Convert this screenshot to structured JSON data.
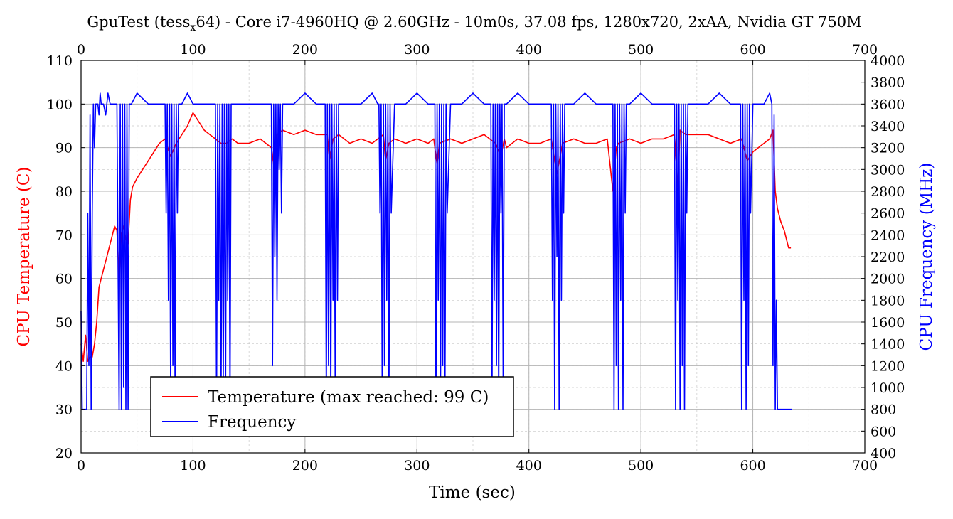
{
  "chart_data": {
    "type": "line",
    "title": "GpuTest (tess",
    "title_sub": "x",
    "title_rest": "64) - Core i7-4960HQ @ 2.60GHz - 10m0s, 37.08 fps, 1280x720, 2xAA, Nvidia GT 750M",
    "xlabel": "Time (sec)",
    "ylabel_left": "CPU Temperature (C)",
    "ylabel_right": "CPU Frequency (MHz)",
    "xlim": [
      0,
      700
    ],
    "ylim_left": [
      20,
      110
    ],
    "ylim_right": [
      400,
      4000
    ],
    "x_ticks": [
      "0",
      "100",
      "200",
      "300",
      "400",
      "500",
      "600",
      "700"
    ],
    "y_left_ticks": [
      "20",
      "30",
      "40",
      "50",
      "60",
      "70",
      "80",
      "90",
      "100",
      "110"
    ],
    "y_right_ticks": [
      "400",
      "600",
      "800",
      "1000",
      "1200",
      "1400",
      "1600",
      "1800",
      "2000",
      "2200",
      "2400",
      "2600",
      "2800",
      "3000",
      "3200",
      "3400",
      "3600",
      "3800",
      "4000"
    ],
    "grid": true,
    "legend_placement": "bottom-left",
    "series": [
      {
        "name": "Temperature (max reached: 99 C)",
        "axis": "left",
        "color": "#ff0000",
        "x": [
          0,
          2,
          4,
          6,
          8,
          10,
          12,
          14,
          16,
          18,
          20,
          24,
          28,
          30,
          32,
          34,
          36,
          38,
          40,
          42,
          44,
          46,
          50,
          55,
          60,
          65,
          70,
          75,
          80,
          85,
          90,
          95,
          100,
          105,
          110,
          115,
          120,
          125,
          130,
          135,
          140,
          150,
          160,
          170,
          172,
          175,
          180,
          190,
          200,
          210,
          220,
          222,
          225,
          230,
          240,
          250,
          260,
          270,
          272,
          275,
          280,
          290,
          300,
          310,
          315,
          318,
          320,
          330,
          340,
          350,
          360,
          370,
          375,
          378,
          380,
          390,
          400,
          410,
          420,
          425,
          430,
          440,
          450,
          460,
          470,
          475,
          478,
          480,
          490,
          500,
          510,
          520,
          530,
          533,
          535,
          540,
          550,
          560,
          570,
          580,
          590,
          595,
          600,
          610,
          615,
          618,
          620,
          622,
          625,
          628,
          630,
          632,
          634
        ],
        "values": [
          45,
          41,
          47,
          41,
          42,
          42,
          45,
          50,
          58,
          60,
          62,
          66,
          70,
          72,
          71,
          60,
          70,
          72,
          69,
          68,
          78,
          81,
          83,
          85,
          87,
          89,
          91,
          92,
          88,
          91,
          93,
          95,
          98,
          96,
          94,
          93,
          92,
          91,
          91,
          92,
          91,
          91,
          92,
          90,
          86,
          93,
          94,
          93,
          94,
          93,
          93,
          87,
          92,
          93,
          91,
          92,
          91,
          93,
          87,
          91,
          92,
          91,
          92,
          91,
          92,
          86,
          91,
          92,
          91,
          92,
          93,
          91,
          88,
          92,
          90,
          92,
          91,
          91,
          92,
          84,
          91,
          92,
          91,
          91,
          92,
          80,
          90,
          91,
          92,
          91,
          92,
          92,
          93,
          81,
          94,
          93,
          93,
          93,
          92,
          91,
          92,
          87,
          89,
          91,
          92,
          94,
          80,
          76,
          73,
          71,
          69,
          67,
          67
        ]
      },
      {
        "name": "Frequency",
        "axis": "right",
        "color": "#0000ff",
        "x": [
          0,
          1,
          2,
          3,
          4,
          5,
          6,
          7,
          8,
          9,
          10,
          11,
          12,
          13,
          14,
          15,
          16,
          17,
          18,
          19,
          20,
          22,
          24,
          26,
          28,
          30,
          32,
          34,
          35,
          36,
          37,
          38,
          39,
          40,
          41,
          42,
          43,
          44,
          45,
          50,
          60,
          70,
          75,
          76,
          77,
          78,
          79,
          80,
          81,
          82,
          83,
          84,
          85,
          86,
          87,
          88,
          89,
          90,
          95,
          100,
          110,
          120,
          121,
          122,
          123,
          124,
          125,
          126,
          127,
          128,
          129,
          130,
          131,
          132,
          133,
          134,
          135,
          140,
          150,
          160,
          170,
          171,
          172,
          173,
          174,
          175,
          176,
          177,
          178,
          179,
          180,
          190,
          200,
          210,
          218,
          219,
          220,
          221,
          222,
          223,
          224,
          225,
          226,
          227,
          228,
          229,
          230,
          240,
          250,
          260,
          265,
          266,
          267,
          268,
          269,
          270,
          271,
          272,
          273,
          274,
          275,
          276,
          277,
          280,
          290,
          300,
          310,
          315,
          316,
          317,
          318,
          319,
          320,
          321,
          322,
          323,
          324,
          325,
          326,
          327,
          330,
          340,
          350,
          360,
          365,
          366,
          367,
          368,
          369,
          370,
          371,
          372,
          373,
          374,
          375,
          376,
          377,
          378,
          380,
          390,
          400,
          410,
          420,
          421,
          422,
          423,
          424,
          425,
          426,
          427,
          428,
          429,
          430,
          431,
          432,
          440,
          450,
          460,
          470,
          475,
          476,
          477,
          478,
          479,
          480,
          481,
          482,
          483,
          484,
          485,
          486,
          487,
          488,
          490,
          500,
          510,
          520,
          530,
          531,
          532,
          533,
          534,
          535,
          536,
          537,
          538,
          539,
          540,
          541,
          542,
          543,
          550,
          560,
          570,
          580,
          588,
          589,
          590,
          591,
          592,
          593,
          594,
          595,
          596,
          597,
          598,
          600,
          610,
          615,
          617,
          618,
          619,
          620,
          621,
          622,
          625,
          630,
          635
        ],
        "values": [
          1700,
          800,
          800,
          800,
          800,
          800,
          2600,
          1200,
          3500,
          800,
          2600,
          3600,
          3200,
          3600,
          3600,
          3600,
          3500,
          3700,
          3600,
          3600,
          3600,
          3500,
          3700,
          3600,
          3600,
          3600,
          3600,
          800,
          3600,
          800,
          3600,
          1000,
          3600,
          800,
          3600,
          800,
          3600,
          3600,
          3600,
          3700,
          3600,
          3600,
          3600,
          2600,
          3600,
          1800,
          3600,
          1000,
          3600,
          1200,
          3600,
          800,
          3600,
          2600,
          3600,
          3600,
          3600,
          3600,
          3700,
          3600,
          3600,
          3600,
          800,
          3600,
          1800,
          3600,
          800,
          3600,
          1000,
          3600,
          800,
          3600,
          1800,
          3600,
          800,
          3600,
          3600,
          3600,
          3600,
          3600,
          3600,
          1200,
          3600,
          2200,
          3600,
          1800,
          3600,
          3000,
          3600,
          2600,
          3600,
          3600,
          3700,
          3600,
          3600,
          800,
          3600,
          1200,
          3600,
          800,
          3600,
          1800,
          3600,
          800,
          3600,
          1800,
          3600,
          3600,
          3600,
          3700,
          3600,
          3600,
          2600,
          3600,
          800,
          3600,
          1200,
          3600,
          1800,
          3600,
          800,
          3600,
          2600,
          3600,
          3600,
          3700,
          3600,
          3600,
          3600,
          800,
          3600,
          1800,
          3600,
          800,
          3600,
          1200,
          3600,
          800,
          3600,
          2600,
          3600,
          3600,
          3700,
          3600,
          3600,
          3600,
          800,
          3600,
          1800,
          3600,
          1200,
          3600,
          800,
          3600,
          2600,
          3600,
          1000,
          3600,
          3600,
          3700,
          3600,
          3600,
          3600,
          1800,
          3600,
          800,
          3600,
          2200,
          3600,
          800,
          3600,
          1800,
          3600,
          2600,
          3600,
          3600,
          3700,
          3600,
          3600,
          3600,
          800,
          3600,
          1200,
          3600,
          800,
          3600,
          1800,
          3600,
          800,
          3600,
          2600,
          3600,
          3600,
          3600,
          3700,
          3600,
          3600,
          3600,
          800,
          3600,
          1800,
          3600,
          800,
          3600,
          1200,
          3600,
          800,
          3600,
          2600,
          3600,
          3600,
          3600,
          3600,
          3700,
          3600,
          3600,
          3600,
          800,
          3600,
          1800,
          3600,
          800,
          3600,
          1200,
          3600,
          2600,
          3600,
          3600,
          3700,
          3600,
          1200,
          3500,
          800,
          1800,
          800,
          800,
          800,
          800
        ]
      }
    ]
  }
}
